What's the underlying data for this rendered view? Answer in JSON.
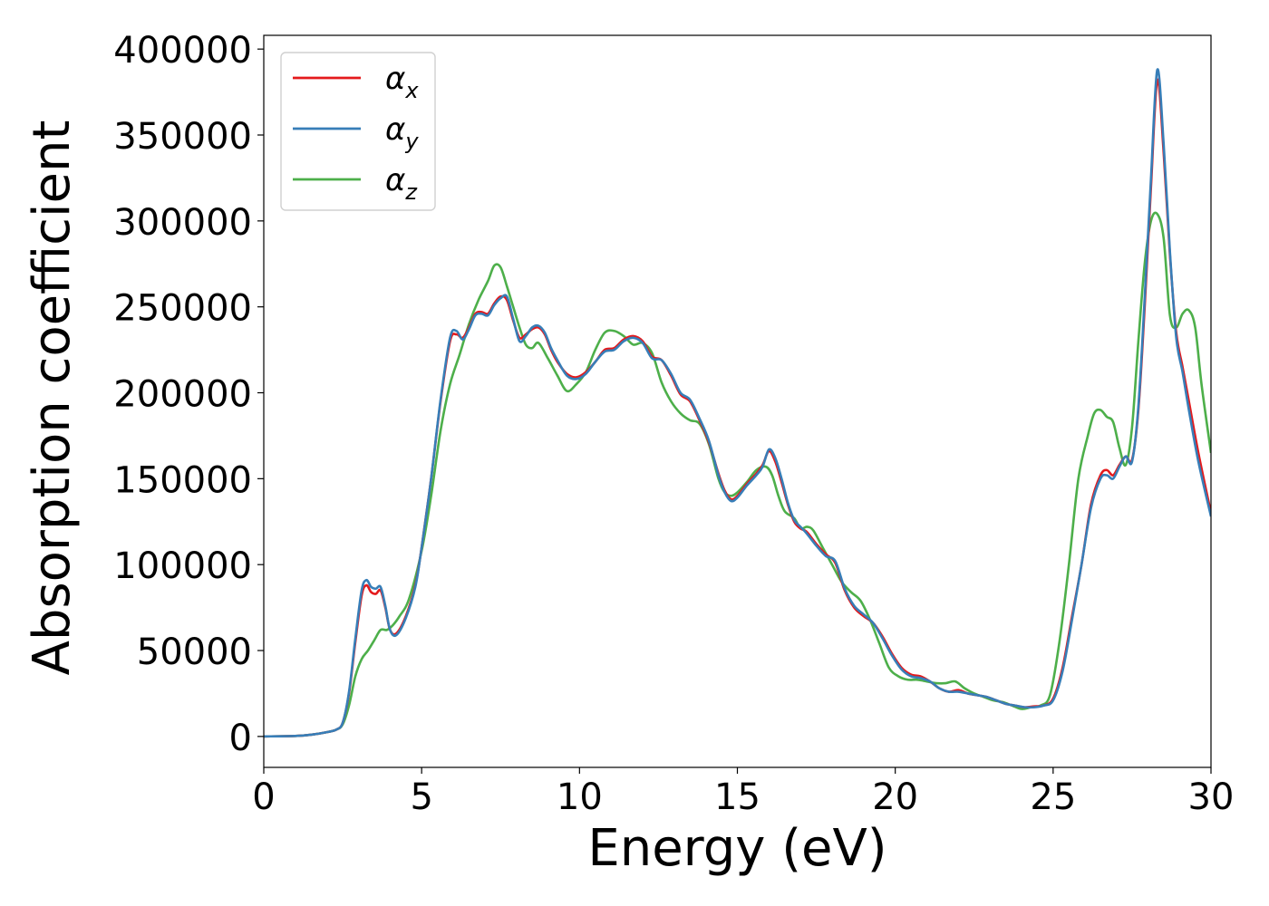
{
  "chart_data": {
    "type": "line",
    "title": "",
    "xlabel": "Energy (eV)",
    "ylabel": "Absorption coefficient",
    "xlim": [
      0,
      30
    ],
    "ylim": [
      -18000,
      408000
    ],
    "xticks": [
      0,
      5,
      10,
      15,
      20,
      25,
      30
    ],
    "yticks": [
      0,
      50000,
      100000,
      150000,
      200000,
      250000,
      300000,
      350000,
      400000
    ],
    "grid": false,
    "legend": {
      "position": "top-left"
    },
    "series": [
      {
        "name": "α_x",
        "label_base": "α",
        "label_sub": "x",
        "color": "#e41a1c",
        "x": [
          0,
          1,
          1.5,
          2,
          2.3,
          2.5,
          2.7,
          2.9,
          3.1,
          3.25,
          3.4,
          3.55,
          3.7,
          3.85,
          4.0,
          4.2,
          4.5,
          4.8,
          5.0,
          5.3,
          5.6,
          5.9,
          6.1,
          6.3,
          6.5,
          6.7,
          6.9,
          7.1,
          7.3,
          7.5,
          7.7,
          7.9,
          8.1,
          8.3,
          8.5,
          8.7,
          8.9,
          9.1,
          9.3,
          9.6,
          9.9,
          10.2,
          10.5,
          10.8,
          11.1,
          11.4,
          11.7,
          12.0,
          12.3,
          12.6,
          12.9,
          13.2,
          13.5,
          13.8,
          14.1,
          14.4,
          14.6,
          14.8,
          15.0,
          15.3,
          15.6,
          15.8,
          16.0,
          16.2,
          16.4,
          16.6,
          16.8,
          17.0,
          17.2,
          17.5,
          17.8,
          18.1,
          18.4,
          18.7,
          19.0,
          19.3,
          19.6,
          19.9,
          20.2,
          20.5,
          20.8,
          21.1,
          21.4,
          21.7,
          22.0,
          22.3,
          22.6,
          22.9,
          23.2,
          23.5,
          23.8,
          24.1,
          24.4,
          24.7,
          25.0,
          25.3,
          25.6,
          25.9,
          26.2,
          26.5,
          26.7,
          26.9,
          27.1,
          27.3,
          27.5,
          27.7,
          27.9,
          28.1,
          28.3,
          28.5,
          28.7,
          28.9,
          29.1,
          29.3,
          29.6,
          30.0
        ],
        "y": [
          0,
          300,
          1000,
          2500,
          4000,
          8000,
          25000,
          55000,
          82000,
          88000,
          84000,
          83000,
          85000,
          75000,
          62000,
          60000,
          70000,
          88000,
          110000,
          150000,
          195000,
          230000,
          234000,
          232000,
          238000,
          246000,
          247000,
          246000,
          252000,
          256000,
          254000,
          242000,
          232000,
          234000,
          237000,
          238000,
          234000,
          225000,
          218000,
          211000,
          209000,
          212000,
          218000,
          225000,
          226000,
          231000,
          233000,
          230000,
          221000,
          219000,
          210000,
          199000,
          195000,
          184000,
          171000,
          153000,
          143000,
          138000,
          140000,
          147000,
          153000,
          158000,
          166000,
          160000,
          148000,
          135000,
          125000,
          121000,
          119000,
          112000,
          106000,
          101000,
          85000,
          75000,
          70000,
          66000,
          58000,
          48000,
          40000,
          36000,
          35000,
          32000,
          28000,
          26000,
          27000,
          25000,
          24000,
          23000,
          21000,
          19000,
          18000,
          17000,
          17500,
          18000,
          22000,
          40000,
          70000,
          100000,
          135000,
          152000,
          155000,
          152000,
          158000,
          163000,
          161000,
          190000,
          250000,
          320000,
          382000,
          340000,
          280000,
          235000,
          215000,
          195000,
          165000,
          130000
        ]
      },
      {
        "name": "α_y",
        "label_base": "α",
        "label_sub": "y",
        "color": "#377eb8",
        "x": [
          0,
          1,
          1.5,
          2,
          2.3,
          2.5,
          2.7,
          2.9,
          3.1,
          3.25,
          3.4,
          3.55,
          3.7,
          3.85,
          4.0,
          4.2,
          4.5,
          4.8,
          5.0,
          5.3,
          5.6,
          5.9,
          6.1,
          6.3,
          6.5,
          6.7,
          6.9,
          7.1,
          7.3,
          7.5,
          7.7,
          7.9,
          8.1,
          8.3,
          8.5,
          8.7,
          8.9,
          9.1,
          9.3,
          9.6,
          9.9,
          10.2,
          10.5,
          10.8,
          11.1,
          11.4,
          11.7,
          12.0,
          12.3,
          12.6,
          12.9,
          13.2,
          13.5,
          13.8,
          14.1,
          14.4,
          14.6,
          14.8,
          15.0,
          15.3,
          15.6,
          15.8,
          16.0,
          16.2,
          16.4,
          16.6,
          16.8,
          17.0,
          17.2,
          17.5,
          17.8,
          18.1,
          18.4,
          18.7,
          19.0,
          19.3,
          19.6,
          19.9,
          20.2,
          20.5,
          20.8,
          21.1,
          21.4,
          21.7,
          22.0,
          22.3,
          22.6,
          22.9,
          23.2,
          23.5,
          23.8,
          24.1,
          24.4,
          24.7,
          25.0,
          25.3,
          25.6,
          25.9,
          26.2,
          26.5,
          26.7,
          26.9,
          27.1,
          27.3,
          27.5,
          27.7,
          27.9,
          28.1,
          28.3,
          28.5,
          28.7,
          28.9,
          29.1,
          29.3,
          29.6,
          30.0
        ],
        "y": [
          0,
          300,
          1000,
          2500,
          4000,
          8000,
          26000,
          57000,
          85000,
          91000,
          87000,
          86000,
          87000,
          76000,
          62000,
          59000,
          69000,
          87000,
          110000,
          150000,
          196000,
          232000,
          236000,
          231000,
          237000,
          245000,
          246000,
          245000,
          251000,
          255000,
          256000,
          243000,
          230000,
          233000,
          238000,
          239000,
          235000,
          226000,
          219000,
          210000,
          208000,
          211000,
          218000,
          224000,
          225000,
          230000,
          232000,
          229000,
          220000,
          219000,
          211000,
          200000,
          196000,
          185000,
          172000,
          152000,
          142000,
          137000,
          139000,
          146000,
          152000,
          157000,
          167000,
          162000,
          150000,
          136000,
          126000,
          122000,
          118000,
          111000,
          105000,
          102000,
          86000,
          76000,
          71000,
          66000,
          57000,
          47000,
          39000,
          35000,
          34000,
          32000,
          28000,
          26000,
          26000,
          25000,
          24000,
          23000,
          21000,
          19000,
          18000,
          17000,
          17000,
          18000,
          21000,
          38000,
          68000,
          100000,
          133000,
          150000,
          152000,
          150000,
          157000,
          163000,
          160000,
          192000,
          255000,
          325000,
          388000,
          345000,
          282000,
          232000,
          212000,
          190000,
          160000,
          128000
        ]
      },
      {
        "name": "α_z",
        "label_base": "α",
        "label_sub": "z",
        "color": "#4daf4a",
        "x": [
          0,
          1,
          1.5,
          2,
          2.3,
          2.5,
          2.7,
          2.9,
          3.1,
          3.3,
          3.5,
          3.7,
          3.9,
          4.1,
          4.3,
          4.6,
          5.0,
          5.3,
          5.6,
          5.9,
          6.2,
          6.5,
          6.8,
          7.1,
          7.3,
          7.5,
          7.7,
          7.9,
          8.1,
          8.3,
          8.5,
          8.7,
          9.0,
          9.3,
          9.6,
          9.9,
          10.2,
          10.5,
          10.8,
          11.1,
          11.4,
          11.7,
          12.0,
          12.3,
          12.6,
          12.9,
          13.2,
          13.5,
          13.8,
          14.1,
          14.4,
          14.6,
          14.8,
          15.0,
          15.3,
          15.6,
          15.9,
          16.1,
          16.3,
          16.5,
          16.8,
          17.0,
          17.2,
          17.4,
          17.7,
          18.0,
          18.3,
          18.6,
          18.9,
          19.2,
          19.5,
          19.8,
          20.1,
          20.4,
          20.7,
          21.0,
          21.3,
          21.6,
          21.9,
          22.2,
          22.5,
          22.8,
          23.1,
          23.4,
          23.7,
          24.0,
          24.3,
          24.6,
          24.9,
          25.2,
          25.5,
          25.8,
          26.1,
          26.3,
          26.5,
          26.7,
          26.9,
          27.1,
          27.3,
          27.5,
          27.7,
          27.9,
          28.1,
          28.3,
          28.5,
          28.7,
          28.9,
          29.1,
          29.3,
          29.5,
          29.7,
          30.0
        ],
        "y": [
          0,
          300,
          1000,
          2500,
          4000,
          7000,
          18000,
          35000,
          45000,
          50000,
          56000,
          62000,
          62000,
          65000,
          70000,
          80000,
          108000,
          140000,
          178000,
          205000,
          222000,
          240000,
          254000,
          265000,
          274000,
          273000,
          262000,
          250000,
          238000,
          228000,
          226000,
          229000,
          220000,
          210000,
          201000,
          205000,
          212000,
          225000,
          235000,
          236000,
          233000,
          228000,
          229000,
          223000,
          206000,
          195000,
          188000,
          184000,
          182000,
          170000,
          150000,
          142000,
          140000,
          142000,
          148000,
          155000,
          157000,
          152000,
          140000,
          131000,
          127000,
          121000,
          122000,
          120000,
          110000,
          100000,
          90000,
          84000,
          79000,
          68000,
          54000,
          40000,
          35000,
          33000,
          33000,
          32000,
          31000,
          31000,
          32000,
          28000,
          25000,
          23000,
          21000,
          20000,
          18000,
          16000,
          17000,
          18000,
          24000,
          55000,
          100000,
          150000,
          175000,
          188000,
          190000,
          186000,
          183000,
          168000,
          158000,
          180000,
          230000,
          275000,
          300000,
          304000,
          290000,
          245000,
          238000,
          246000,
          248000,
          238000,
          205000,
          165000
        ]
      }
    ]
  }
}
